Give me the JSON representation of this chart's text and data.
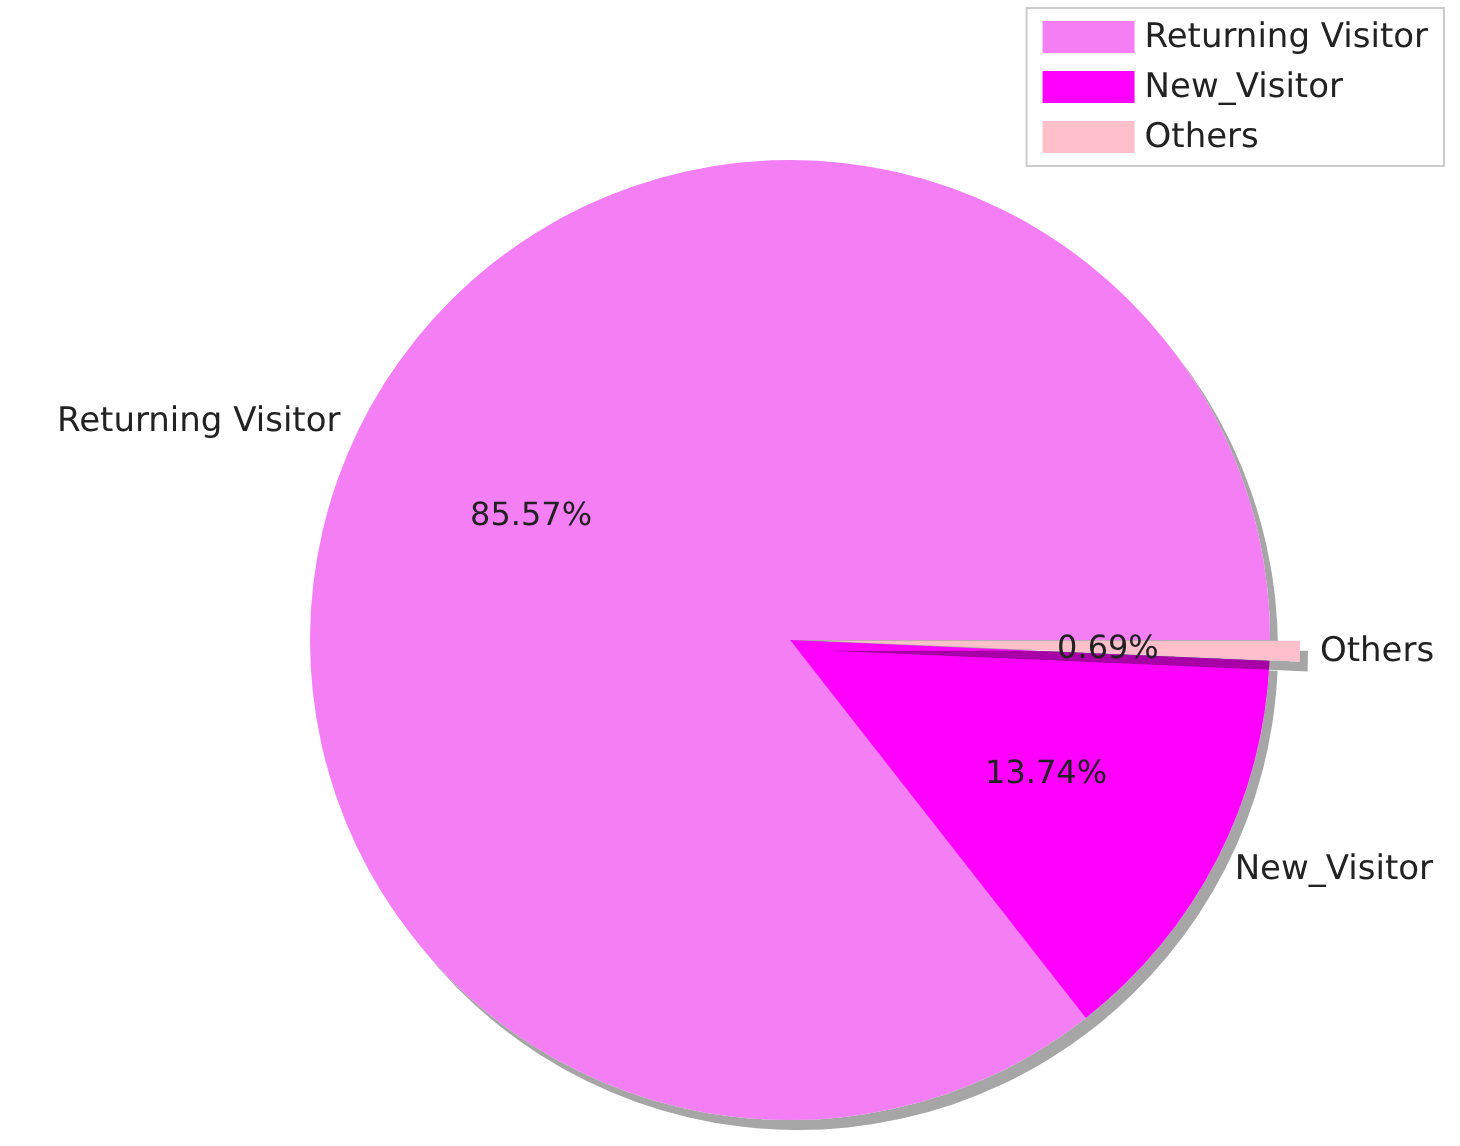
{
  "chart_data": {
    "type": "pie",
    "categories": [
      "Returning Visitor",
      "New_Visitor",
      "Others"
    ],
    "values": [
      85.57,
      13.74,
      0.69
    ],
    "value_labels": [
      "85.57%",
      "13.74%",
      "0.69%"
    ],
    "colors": [
      "#f47ff4",
      "#ff00ff",
      "#ffc0cb"
    ],
    "legend": "top right"
  }
}
